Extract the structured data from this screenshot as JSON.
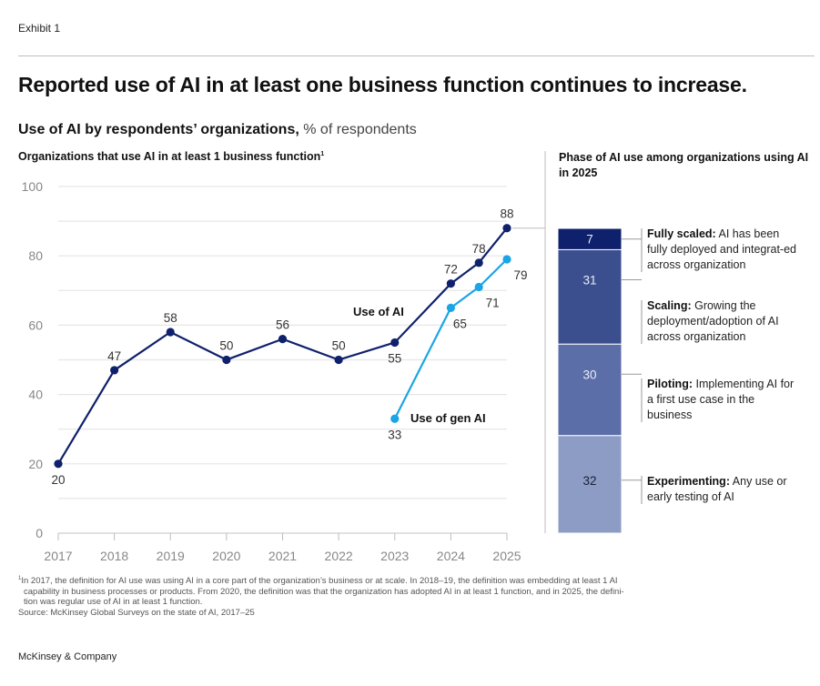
{
  "exhibit_label": "Exhibit 1",
  "title": "Reported use of AI in at least one business function continues to increase.",
  "subtitle": {
    "bold": "Use of AI by respondents’ organizations,",
    "unit": " % of respondents"
  },
  "left_heading": {
    "text": "Organizations that use AI in at least 1 business function",
    "footnote_marker": "1"
  },
  "right_heading": "Phase of AI use among organizations using AI in 2025",
  "colors": {
    "use_of_ai": "#0f206c",
    "use_of_gen_ai": "#1ba5e6",
    "fully_scaled": "#0f206c",
    "scaling": "#3b4f8e",
    "piloting": "#5c6ea8",
    "experimenting": "#8c9cc4",
    "grid": "#e6e6e6",
    "axis_text": "#888888"
  },
  "chart_data": [
    {
      "type": "line",
      "title": "Organizations that use AI in at least 1 business function",
      "xlabel": "",
      "ylabel": "% of respondents",
      "ylim": [
        0,
        100
      ],
      "yticks": [
        0,
        20,
        40,
        60,
        80,
        100
      ],
      "ygrid_step": 10,
      "grid": true,
      "x_tick_labels": [
        "2017",
        "2018",
        "2019",
        "2020",
        "2021",
        "2022",
        "2023",
        "2024",
        "2025"
      ],
      "series": [
        {
          "name": "Use of AI",
          "color_key": "use_of_ai",
          "points": [
            {
              "x": 2017,
              "y": 20,
              "label": "20",
              "label_pos": "below"
            },
            {
              "x": 2018,
              "y": 47,
              "label": "47",
              "label_pos": "above"
            },
            {
              "x": 2019,
              "y": 58,
              "label": "58",
              "label_pos": "above"
            },
            {
              "x": 2020,
              "y": 50,
              "label": "50",
              "label_pos": "above"
            },
            {
              "x": 2021,
              "y": 56,
              "label": "56",
              "label_pos": "above"
            },
            {
              "x": 2022,
              "y": 50,
              "label": "50",
              "label_pos": "above"
            },
            {
              "x": 2023,
              "y": 55,
              "label": "55",
              "label_pos": "below"
            },
            {
              "x": 2024,
              "y": 72,
              "label": "72",
              "label_pos": "above"
            },
            {
              "x": 2024.5,
              "y": 78,
              "label": "78",
              "label_pos": "above"
            },
            {
              "x": 2025,
              "y": 88,
              "label": "88",
              "label_pos": "above"
            }
          ]
        },
        {
          "name": "Use of gen AI",
          "color_key": "use_of_gen_ai",
          "points": [
            {
              "x": 2023,
              "y": 33,
              "label": "33",
              "label_pos": "below"
            },
            {
              "x": 2024,
              "y": 65,
              "label": "65",
              "label_pos": "below"
            },
            {
              "x": 2024.5,
              "y": 71,
              "label": "71",
              "label_pos": "below"
            },
            {
              "x": 2025,
              "y": 79,
              "label": "79",
              "label_pos": "below"
            }
          ]
        }
      ]
    },
    {
      "type": "bar",
      "stacked": true,
      "title": "Phase of AI use among organizations using AI in 2025",
      "categories": [
        "2025"
      ],
      "segments": [
        {
          "name": "Fully scaled",
          "value": 7,
          "color_key": "fully_scaled",
          "desc": "AI has been fully deployed and integrat-ed across organization"
        },
        {
          "name": "Scaling",
          "value": 31,
          "color_key": "scaling",
          "desc": "Growing the deployment/adoption of AI across organization"
        },
        {
          "name": "Piloting",
          "value": 30,
          "color_key": "piloting",
          "desc": "Implementing AI for a first use case in the business"
        },
        {
          "name": "Experimenting",
          "value": 32,
          "color_key": "experimenting",
          "desc": "Any use or early testing of AI"
        }
      ]
    }
  ],
  "legend": [
    {
      "bold": "Fully scaled:",
      "text": " AI has been fully deployed and integrat-ed across organization"
    },
    {
      "bold": "Scaling:",
      "text": " Growing the deployment/adoption of AI across organization"
    },
    {
      "bold": "Piloting:",
      "text": " Implementing AI for a first use case in the business"
    },
    {
      "bold": "Experimenting:",
      "text": " Any use or early testing of AI"
    }
  ],
  "footnote": {
    "marker": "1",
    "line1": "In 2017, the definition for AI use was using AI in a core part of the organization’s business or at scale. In 2018–19, the definition was embedding at least 1 AI",
    "line2": "capability in business processes or products. From 2020, the definition was that the organization has adopted AI in at least 1 function, and in 2025, the defini-",
    "line3": "tion was regular use of AI in at least 1 function.",
    "source": "Source: McKinsey Global Surveys on the state of AI, 2017–25"
  },
  "brand": "McKinsey & Company"
}
